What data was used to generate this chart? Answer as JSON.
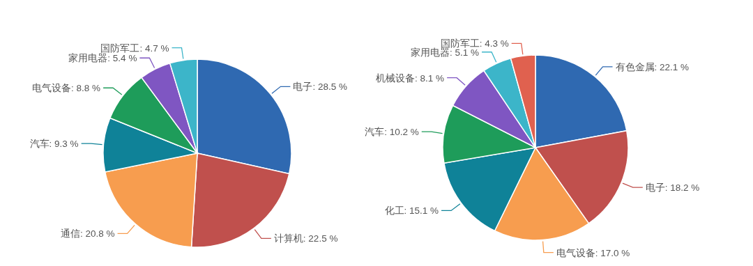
{
  "chart_data": [
    {
      "type": "pie",
      "categories": [
        "电子",
        "计算机",
        "通信",
        "汽车",
        "电气设备",
        "家用电器",
        "国防军工"
      ],
      "values": [
        28.5,
        22.5,
        20.8,
        9.3,
        8.8,
        5.4,
        4.7
      ],
      "colors": [
        "#2f69b1",
        "#c0504d",
        "#f79d4f",
        "#0f8298",
        "#1e9c5a",
        "#7f56c2",
        "#3cb5c9"
      ],
      "value_labels": [
        ": 28.5 %",
        ": 22.5 %",
        ": 20.8 %",
        ": 9.3 %",
        ": 8.8 %",
        ": 5.4 %",
        ": 4.7 %"
      ]
    },
    {
      "type": "pie",
      "categories": [
        "有色金属",
        "电子",
        "电气设备",
        "化工",
        "汽车",
        "机械设备",
        "家用电器",
        "国防军工"
      ],
      "values": [
        22.1,
        18.2,
        17.0,
        15.1,
        10.2,
        8.1,
        5.1,
        4.3
      ],
      "colors": [
        "#2f69b1",
        "#c0504d",
        "#f79d4f",
        "#0f8298",
        "#1e9c5a",
        "#7f56c2",
        "#3cb5c9",
        "#e0614f"
      ],
      "value_labels": [
        ": 22.1 %",
        ": 18.2 %",
        ": 17.0 %",
        ": 15.1 %",
        ": 10.2 %",
        ": 8.1 %",
        ": 5.1 %",
        ": 4.3 %"
      ]
    }
  ]
}
